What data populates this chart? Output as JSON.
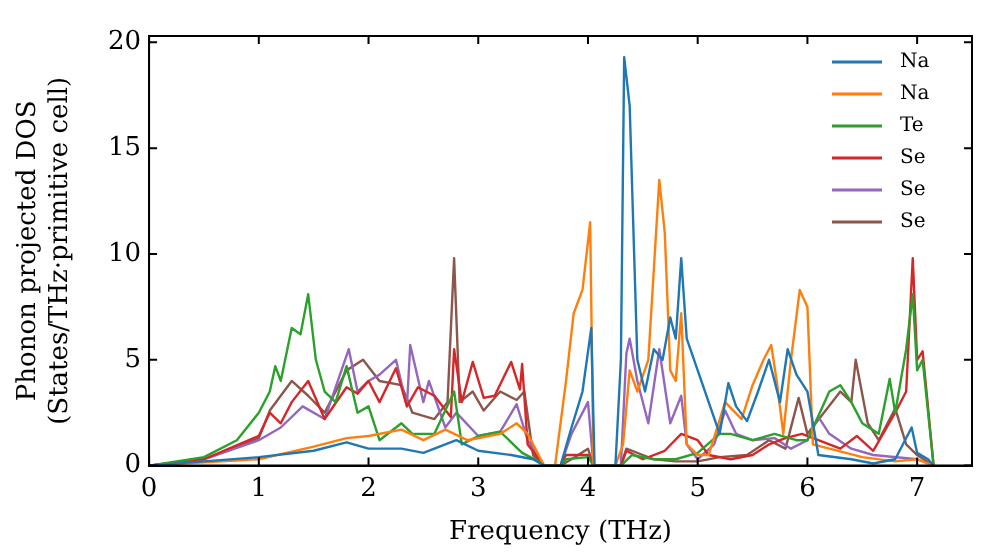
{
  "chart_data": {
    "type": "line",
    "xlabel": "Frequency (THz)",
    "ylabel": "Phonon projected DOS\n(States/THz·primitive cell)",
    "xlim": [
      0,
      7.5
    ],
    "xticks": [
      0,
      1,
      2,
      3,
      4,
      5,
      6,
      7
    ],
    "ylim": [
      0,
      20.3
    ],
    "yticks": [
      0,
      5,
      10,
      15,
      20
    ],
    "grid": false,
    "legend": "top right",
    "marker": "none",
    "line_style": "solid",
    "series": [
      {
        "name": "Na",
        "color": "#1f77b4",
        "x": [
          0,
          0.5,
          1,
          1.5,
          1.8,
          2,
          2.3,
          2.5,
          2.8,
          3,
          3.3,
          3.5,
          3.6,
          3.75,
          3.85,
          3.95,
          4.03,
          4.06,
          4.25,
          4.3,
          4.33,
          4.38,
          4.45,
          4.52,
          4.6,
          4.68,
          4.75,
          4.8,
          4.85,
          4.9,
          5.0,
          5.1,
          5.2,
          5.28,
          5.35,
          5.45,
          5.55,
          5.65,
          5.75,
          5.82,
          5.9,
          6.0,
          6.1,
          6.4,
          6.6,
          6.8,
          6.95,
          7.0,
          7.1,
          7.15
        ],
        "values": [
          0,
          0.2,
          0.4,
          0.7,
          1.1,
          0.8,
          0.8,
          0.6,
          1.2,
          0.7,
          0.5,
          0.3,
          0,
          0,
          1.8,
          3.5,
          6.5,
          0,
          0,
          5,
          19.3,
          17,
          5,
          3.5,
          5.5,
          5,
          7,
          6,
          9.8,
          6,
          4.5,
          3,
          1.5,
          3.9,
          2.8,
          2.1,
          3.5,
          5,
          3,
          5.5,
          4.3,
          3.5,
          0.5,
          0.3,
          0.1,
          0.3,
          1.8,
          0.6,
          0.3,
          0
        ]
      },
      {
        "name": "Na",
        "color": "#ff7f0e",
        "x": [
          0,
          1,
          1.5,
          1.8,
          2.0,
          2.3,
          2.5,
          2.7,
          2.9,
          3.2,
          3.35,
          3.45,
          3.6,
          3.7,
          3.8,
          3.87,
          3.95,
          4.02,
          4.05,
          4.25,
          4.32,
          4.38,
          4.45,
          4.55,
          4.65,
          4.7,
          4.75,
          4.8,
          4.85,
          4.9,
          5.0,
          5.1,
          5.25,
          5.4,
          5.5,
          5.6,
          5.67,
          5.72,
          5.78,
          5.85,
          5.93,
          6.0,
          6.05,
          6.2,
          6.5,
          6.8,
          7.0,
          7.15
        ],
        "values": [
          0,
          0.3,
          0.9,
          1.3,
          1.4,
          1.7,
          1.2,
          1.7,
          1.2,
          1.5,
          2,
          1.5,
          0,
          0,
          4,
          7.2,
          8.3,
          11.5,
          0,
          0,
          1,
          4.5,
          3.5,
          5,
          13.5,
          11,
          4.5,
          4,
          7.2,
          1,
          0.5,
          0.5,
          3,
          2.2,
          3.8,
          5,
          5.7,
          4,
          1.5,
          5,
          8.3,
          7.5,
          1,
          0.8,
          0.4,
          0.2,
          0.3,
          0
        ]
      },
      {
        "name": "Te",
        "color": "#2ca02c",
        "x": [
          0,
          0.5,
          0.8,
          1.0,
          1.1,
          1.15,
          1.2,
          1.3,
          1.38,
          1.45,
          1.52,
          1.6,
          1.7,
          1.8,
          1.9,
          2.0,
          2.1,
          2.3,
          2.4,
          2.6,
          2.78,
          2.85,
          3.0,
          3.2,
          3.4,
          3.55,
          3.6,
          3.75,
          3.8,
          4.0,
          4.05,
          4.3,
          4.4,
          4.6,
          4.8,
          5.0,
          5.2,
          5.3,
          5.5,
          5.7,
          5.9,
          6.0,
          6.2,
          6.3,
          6.4,
          6.5,
          6.65,
          6.75,
          6.8,
          6.9,
          6.96,
          7.0,
          7.05,
          7.15
        ],
        "values": [
          0,
          0.4,
          1.2,
          2.5,
          3.5,
          4.7,
          4,
          6.5,
          6.2,
          8.1,
          5,
          3.5,
          3,
          4.7,
          2.5,
          2.8,
          1.2,
          2,
          1.5,
          1.5,
          3.5,
          1,
          1.4,
          1.6,
          0.6,
          0.2,
          0,
          0,
          0.3,
          0.4,
          0,
          0,
          0.5,
          0.3,
          0.3,
          0.6,
          1.5,
          1.5,
          1.2,
          1.5,
          1.2,
          1.2,
          3.5,
          3.8,
          3,
          2,
          1.5,
          4.1,
          2.5,
          5.5,
          8.1,
          4.5,
          5,
          0
        ]
      },
      {
        "name": "Se",
        "color": "#d62728",
        "x": [
          0,
          0.5,
          1.0,
          1.1,
          1.2,
          1.3,
          1.45,
          1.6,
          1.8,
          1.9,
          2.0,
          2.1,
          2.25,
          2.35,
          2.45,
          2.6,
          2.75,
          2.78,
          2.85,
          2.95,
          3.05,
          3.15,
          3.3,
          3.38,
          3.4,
          3.45,
          3.6,
          3.75,
          3.8,
          4.0,
          4.05,
          4.3,
          4.35,
          4.5,
          4.7,
          4.85,
          5.0,
          5.1,
          5.3,
          5.5,
          5.65,
          5.8,
          5.95,
          6.1,
          6.3,
          6.45,
          6.6,
          6.8,
          6.9,
          6.96,
          7.0,
          7.05,
          7.15
        ],
        "values": [
          0,
          0.3,
          1.4,
          2.5,
          2,
          3,
          4,
          2.2,
          3.7,
          3.4,
          4,
          3,
          4.6,
          2.8,
          3.7,
          3.3,
          2.3,
          5.5,
          3,
          4.9,
          3.2,
          3.3,
          4.9,
          3.6,
          4.8,
          1,
          0,
          0,
          0.5,
          0.5,
          0,
          0,
          0.7,
          0.3,
          0.7,
          1.5,
          1.2,
          0.5,
          0.3,
          0.5,
          1,
          1.3,
          1.5,
          1.2,
          0.8,
          1.4,
          0.7,
          2.5,
          3.5,
          9.8,
          5,
          5.4,
          0
        ]
      },
      {
        "name": "Se",
        "color": "#9467bd",
        "x": [
          0,
          0.5,
          1.0,
          1.2,
          1.4,
          1.6,
          1.82,
          1.9,
          2.0,
          2.1,
          2.25,
          2.35,
          2.38,
          2.5,
          2.55,
          2.7,
          2.8,
          3.0,
          3.2,
          3.35,
          3.45,
          3.6,
          3.75,
          3.85,
          4.0,
          4.05,
          4.3,
          4.35,
          4.38,
          4.45,
          4.55,
          4.65,
          4.75,
          4.85,
          4.9,
          5.0,
          5.15,
          5.25,
          5.35,
          5.5,
          5.7,
          5.85,
          6.0,
          6.1,
          6.2,
          6.4,
          6.6,
          7.0,
          7.15
        ],
        "values": [
          0,
          0.3,
          1.2,
          1.8,
          2.8,
          2.2,
          5.5,
          3.5,
          4,
          4.3,
          5,
          2.8,
          5.7,
          3,
          4,
          1.8,
          2.5,
          1.4,
          1.6,
          2.9,
          1.2,
          0,
          0,
          1.5,
          3,
          0,
          0,
          5.3,
          6,
          4,
          2,
          5.5,
          2,
          3.3,
          1,
          0.3,
          1,
          2.6,
          1.5,
          1.2,
          1.3,
          0.8,
          1.2,
          2.3,
          1.5,
          0.8,
          0.5,
          0.3,
          0
        ]
      },
      {
        "name": "Se",
        "color": "#8c564b",
        "x": [
          0,
          0.5,
          1.0,
          1.1,
          1.3,
          1.45,
          1.6,
          1.8,
          1.95,
          2.1,
          2.3,
          2.4,
          2.6,
          2.72,
          2.78,
          2.83,
          2.95,
          3.05,
          3.2,
          3.35,
          3.42,
          3.5,
          3.6,
          3.75,
          3.85,
          4.0,
          4.05,
          4.3,
          4.35,
          4.6,
          4.8,
          5.0,
          5.2,
          5.45,
          5.65,
          5.8,
          5.92,
          6.0,
          6.15,
          6.3,
          6.4,
          6.44,
          6.55,
          6.65,
          6.8,
          6.9,
          7.0,
          7.15
        ],
        "values": [
          0,
          0.3,
          1.3,
          2.6,
          4,
          3.3,
          2.5,
          4.5,
          5,
          4,
          3.8,
          2.5,
          2.2,
          3,
          9.8,
          3,
          3.5,
          2.6,
          3.5,
          3.1,
          3.5,
          0.5,
          0,
          0,
          0.3,
          0.8,
          0,
          0,
          0.8,
          0.3,
          0.2,
          0.2,
          0.4,
          0.5,
          1.2,
          0.8,
          3.2,
          1.5,
          2.5,
          3.5,
          3,
          5,
          2,
          1.2,
          2.7,
          1,
          0.5,
          0
        ]
      }
    ]
  }
}
